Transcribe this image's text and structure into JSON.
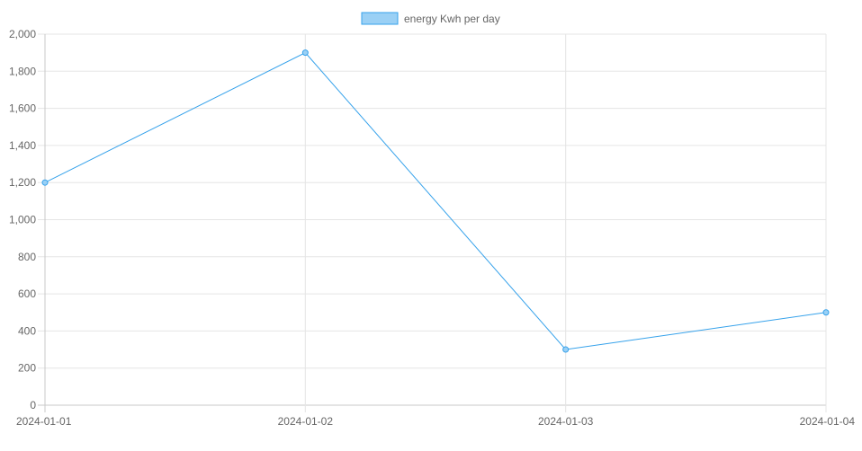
{
  "chart_data": {
    "type": "line",
    "x": [
      "2024-01-01",
      "2024-01-02",
      "2024-01-03",
      "2024-01-04"
    ],
    "series": [
      {
        "name": "energy Kwh per day",
        "values": [
          1200,
          1900,
          300,
          500
        ]
      }
    ],
    "yticks": [
      "0",
      "200",
      "400",
      "600",
      "800",
      "1,000",
      "1,200",
      "1,400",
      "1,600",
      "1,800",
      "2,000"
    ],
    "ylim": [
      0,
      2000
    ],
    "grid": true,
    "legend": "top-center",
    "colors": {
      "line": "#36a2eb",
      "fill": "#9ad0f5",
      "grid": "#e5e5e5",
      "text": "#666666"
    }
  }
}
